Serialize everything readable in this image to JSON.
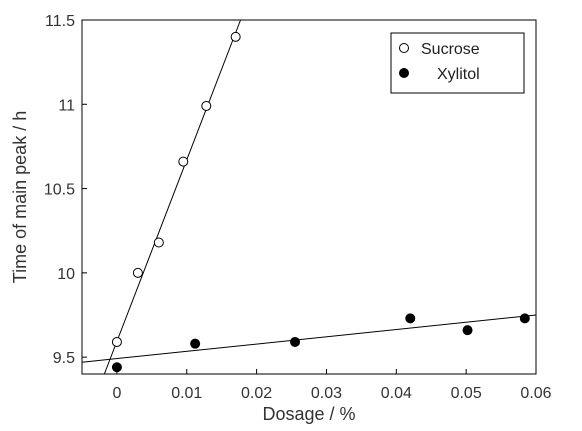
{
  "chart_data": {
    "type": "scatter",
    "title": "",
    "xlabel": "Dosage / %",
    "ylabel": "Time of main peak / h",
    "xlim": [
      -0.005,
      0.06
    ],
    "ylim": [
      9.4,
      11.5
    ],
    "xticks": [
      0,
      0.01,
      0.02,
      0.03,
      0.04,
      0.05,
      0.06
    ],
    "xtick_labels": [
      "0",
      "0.01",
      "0.02",
      "0.03",
      "0.04",
      "0.05",
      "0.06"
    ],
    "yticks": [
      9.5,
      10,
      10.5,
      11,
      11.5
    ],
    "ytick_labels": [
      "9.5",
      "10",
      "10.5",
      "11",
      "11.5"
    ],
    "grid": false,
    "legend_position": "top-right",
    "series": [
      {
        "name": "Sucrose",
        "marker": "open-circle",
        "color": "#000000",
        "x": [
          0,
          0.003,
          0.006,
          0.0095,
          0.0128,
          0.017
        ],
        "y": [
          9.59,
          10.0,
          10.18,
          10.66,
          10.99,
          11.4
        ],
        "fit_line": [
          [
            -0.0018,
            9.4
          ],
          [
            0.0177,
            11.5
          ]
        ]
      },
      {
        "name": "Xylitol",
        "marker": "filled-circle",
        "color": "#000000",
        "x": [
          0,
          0.0112,
          0.0255,
          0.042,
          0.0502,
          0.0584
        ],
        "y": [
          9.44,
          9.58,
          9.59,
          9.73,
          9.66,
          9.73
        ],
        "fit_line": [
          [
            -0.005,
            9.47
          ],
          [
            0.06,
            9.75
          ]
        ]
      }
    ]
  }
}
